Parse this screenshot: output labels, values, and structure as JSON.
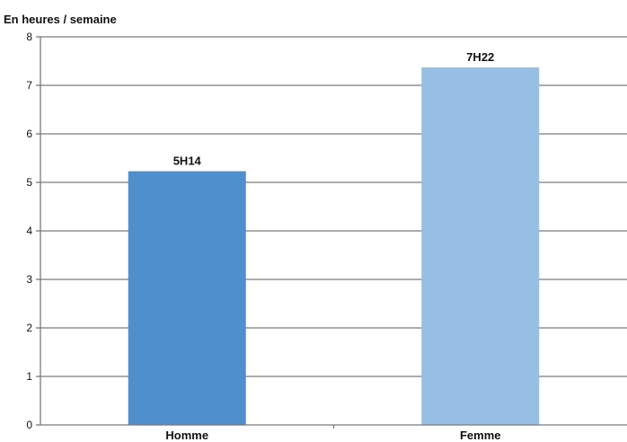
{
  "chart_data": {
    "type": "bar",
    "title": "",
    "ylabel": "En heures / semaine",
    "xlabel": "",
    "categories": [
      "Homme",
      "Femme"
    ],
    "values": [
      5.23,
      7.37
    ],
    "data_labels": [
      "5H14",
      "7H22"
    ],
    "colors": [
      "#4f8fcd",
      "#97bfe4"
    ],
    "ylim": [
      0,
      8
    ],
    "yticks": [
      "0",
      "1",
      "2",
      "3",
      "4",
      "5",
      "6",
      "7",
      "8"
    ],
    "grid": true,
    "legend": "none"
  }
}
